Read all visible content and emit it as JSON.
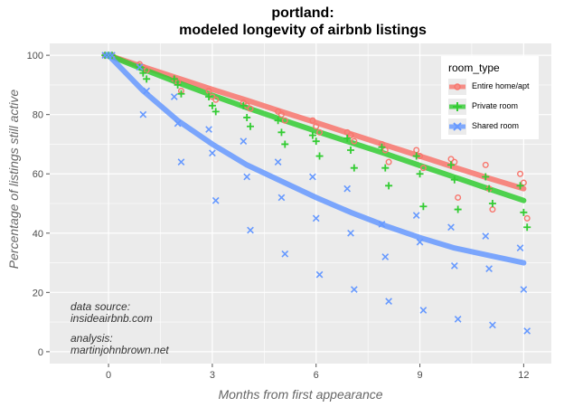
{
  "title": "portland:",
  "subtitle": "modeled longevity of airbnb listings",
  "notes": {
    "source_label": "data source:",
    "source_value": "insideairbnb.com",
    "analysis_label": "analysis:",
    "analysis_value": "martinjohnbrown.net"
  },
  "colors": {
    "panel": "#ebebeb",
    "grid": "#ffffff",
    "entire": "#f8766d",
    "private": "#33cc33",
    "shared": "#6699ff"
  },
  "chart_data": {
    "type": "scatter",
    "title": "portland:\nmodeled longevity of airbnb listings",
    "xlabel": "Months from first appearance",
    "ylabel": "Percentage of listings still active",
    "xlim": [
      -1.7,
      12.8
    ],
    "ylim": [
      -4,
      104
    ],
    "xticks": [
      0,
      3,
      6,
      9,
      12
    ],
    "yticks": [
      0,
      20,
      40,
      60,
      80,
      100
    ],
    "grid": true,
    "legend_position": "top-right",
    "legend_title": "room_type",
    "series": [
      {
        "name": "Entire home/apt",
        "marker": "circle",
        "points": [
          [
            -0.1,
            100
          ],
          [
            0,
            100
          ],
          [
            0.1,
            100
          ],
          [
            0.9,
            97
          ],
          [
            1.0,
            96
          ],
          [
            1.1,
            95
          ],
          [
            1.9,
            92
          ],
          [
            2.0,
            91
          ],
          [
            2.1,
            88
          ],
          [
            2.9,
            88
          ],
          [
            3.0,
            86
          ],
          [
            3.1,
            85
          ],
          [
            3.9,
            84
          ],
          [
            4.0,
            83
          ],
          [
            4.1,
            82
          ],
          [
            4.9,
            81
          ],
          [
            5.0,
            80
          ],
          [
            5.1,
            78
          ],
          [
            5.9,
            78
          ],
          [
            6.0,
            76
          ],
          [
            6.1,
            74
          ],
          [
            6.9,
            74
          ],
          [
            7.0,
            73
          ],
          [
            7.1,
            71
          ],
          [
            7.9,
            70
          ],
          [
            8.0,
            68
          ],
          [
            8.1,
            64
          ],
          [
            8.9,
            68
          ],
          [
            9.0,
            66
          ],
          [
            9.1,
            62
          ],
          [
            9.9,
            65
          ],
          [
            10.0,
            64
          ],
          [
            10.1,
            52
          ],
          [
            10.9,
            63
          ],
          [
            11.0,
            55
          ],
          [
            11.1,
            48
          ],
          [
            11.9,
            60
          ],
          [
            12.0,
            57
          ],
          [
            12.1,
            45
          ]
        ],
        "fit": [
          [
            0,
            100
          ],
          [
            1,
            96.1
          ],
          [
            2,
            92.3
          ],
          [
            3,
            88.5
          ],
          [
            4,
            84.8
          ],
          [
            5,
            81
          ],
          [
            6,
            77.3
          ],
          [
            7,
            73.5
          ],
          [
            8,
            69.7
          ],
          [
            9,
            66
          ],
          [
            10,
            62.2
          ],
          [
            11,
            58.5
          ],
          [
            12,
            55
          ]
        ]
      },
      {
        "name": "Private room",
        "marker": "plus",
        "points": [
          [
            -0.1,
            100
          ],
          [
            0,
            100
          ],
          [
            0.1,
            100
          ],
          [
            0.9,
            96
          ],
          [
            1.0,
            94
          ],
          [
            1.1,
            92
          ],
          [
            1.9,
            92
          ],
          [
            2.0,
            90
          ],
          [
            2.1,
            87
          ],
          [
            2.9,
            86
          ],
          [
            3.0,
            83
          ],
          [
            3.1,
            81
          ],
          [
            3.9,
            83
          ],
          [
            4.0,
            79
          ],
          [
            4.1,
            76
          ],
          [
            4.9,
            78
          ],
          [
            5.0,
            74
          ],
          [
            5.1,
            70
          ],
          [
            5.9,
            73
          ],
          [
            6.0,
            71
          ],
          [
            6.1,
            66
          ],
          [
            6.9,
            72
          ],
          [
            7.0,
            68
          ],
          [
            7.1,
            62
          ],
          [
            7.9,
            69
          ],
          [
            8.0,
            62
          ],
          [
            8.1,
            56
          ],
          [
            8.9,
            66
          ],
          [
            9.0,
            60
          ],
          [
            9.1,
            49
          ],
          [
            9.9,
            63
          ],
          [
            10.0,
            58
          ],
          [
            10.1,
            48
          ],
          [
            10.9,
            59
          ],
          [
            11.0,
            55
          ],
          [
            11.1,
            50
          ],
          [
            11.9,
            56
          ],
          [
            12.0,
            47
          ],
          [
            12.1,
            42
          ]
        ],
        "fit": [
          [
            0,
            100
          ],
          [
            1,
            95.3
          ],
          [
            2,
            90.8
          ],
          [
            3,
            86.5
          ],
          [
            4,
            82.3
          ],
          [
            5,
            78.3
          ],
          [
            6,
            74.4
          ],
          [
            7,
            70.6
          ],
          [
            8,
            66.8
          ],
          [
            9,
            62.8
          ],
          [
            10,
            58.9
          ],
          [
            11,
            54.9
          ],
          [
            12,
            51
          ]
        ]
      },
      {
        "name": "Shared room",
        "marker": "cross",
        "points": [
          [
            -0.1,
            100
          ],
          [
            0,
            100
          ],
          [
            0.1,
            100
          ],
          [
            0.9,
            96
          ],
          [
            1.0,
            80
          ],
          [
            1.1,
            88
          ],
          [
            1.9,
            86
          ],
          [
            2.0,
            77
          ],
          [
            2.1,
            64
          ],
          [
            2.9,
            75
          ],
          [
            3.0,
            67
          ],
          [
            3.1,
            51
          ],
          [
            3.9,
            71
          ],
          [
            4.0,
            59
          ],
          [
            4.1,
            41
          ],
          [
            4.9,
            64
          ],
          [
            5.0,
            52
          ],
          [
            5.1,
            33
          ],
          [
            5.9,
            59
          ],
          [
            6.0,
            45
          ],
          [
            6.1,
            26
          ],
          [
            6.9,
            55
          ],
          [
            7.0,
            40
          ],
          [
            7.1,
            21
          ],
          [
            7.9,
            43
          ],
          [
            8.0,
            32
          ],
          [
            8.1,
            17
          ],
          [
            8.9,
            46
          ],
          [
            9.0,
            37
          ],
          [
            9.1,
            14
          ],
          [
            9.9,
            42
          ],
          [
            10.0,
            29
          ],
          [
            10.1,
            11
          ],
          [
            10.9,
            39
          ],
          [
            11.0,
            28
          ],
          [
            11.1,
            9
          ],
          [
            11.9,
            35
          ],
          [
            12.0,
            21
          ],
          [
            12.1,
            7
          ]
        ],
        "fit": [
          [
            0,
            100
          ],
          [
            1,
            88
          ],
          [
            2,
            78
          ],
          [
            3,
            70
          ],
          [
            4,
            63
          ],
          [
            5,
            57.5
          ],
          [
            6,
            52
          ],
          [
            7,
            47
          ],
          [
            8,
            42.5
          ],
          [
            9,
            38.5
          ],
          [
            10,
            35
          ],
          [
            11,
            32.5
          ],
          [
            12,
            30
          ]
        ]
      }
    ]
  }
}
